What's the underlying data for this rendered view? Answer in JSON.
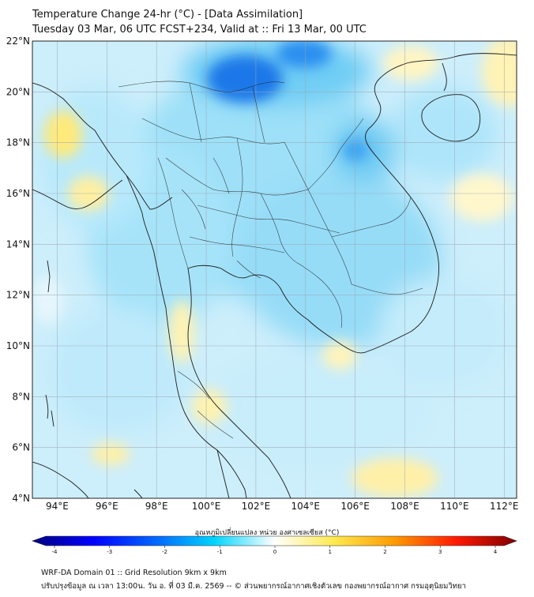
{
  "header": {
    "title_line1": "Temperature Change 24-hr (°C) - [Data Assimilation]",
    "title_line2": "Tuesday 03 Mar, 06 UTC FCST+234, Valid at :: Fri 13 Mar, 00 UTC"
  },
  "map": {
    "lat_ticks": [
      "22°N",
      "20°N",
      "18°N",
      "16°N",
      "14°N",
      "12°N",
      "10°N",
      "8°N",
      "6°N",
      "4°N"
    ],
    "lon_ticks": [
      "94°E",
      "96°E",
      "98°E",
      "100°E",
      "102°E",
      "104°E",
      "106°E",
      "108°E",
      "110°E",
      "112°E"
    ],
    "lat_range": [
      4,
      22
    ],
    "lon_range": [
      93,
      112.5
    ],
    "colors": {
      "land_outline": "#1a1a1a",
      "grid": "#9aa4b0"
    }
  },
  "colorbar": {
    "title": "อุณหภูมิเปลี่ยนแปลง หน่วย องศาเซลเซียส (°C)",
    "ticks": [
      "-4",
      "-3",
      "-2",
      "-1",
      "0",
      "1",
      "2",
      "3",
      "4"
    ],
    "range": [
      -4,
      4
    ],
    "colors": [
      "#00007f",
      "#0000ff",
      "#0063ff",
      "#00d4ff",
      "#ffffff",
      "#ffe94d",
      "#ff9900",
      "#ff1a00",
      "#800000"
    ]
  },
  "footer": {
    "line1": "WRF-DA Domain 01 :: Grid Resolution 9km x 9km",
    "line2": "ปรับปรุงข้อมูล ณ เวลา 13:00น. วัน อ. ที่ 03 มี.ค. 2569 -- © ส่วนพยากรณ์อากาศเชิงตัวเลข กองพยากรณ์อากาศ กรมอุตุนิยมวิทยา"
  }
}
